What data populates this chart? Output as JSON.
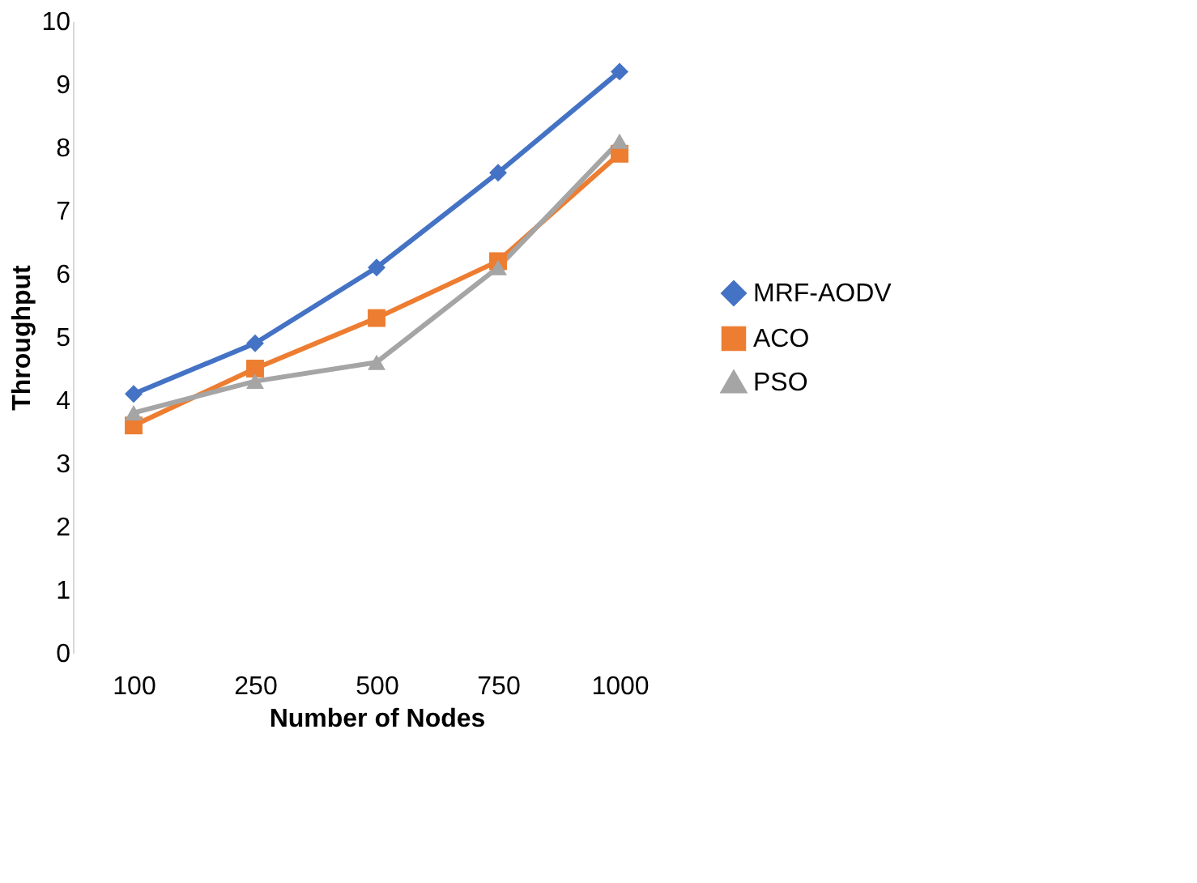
{
  "chart_data": {
    "type": "line",
    "xlabel": "Number of Nodes",
    "ylabel": "Throughput",
    "categories": [
      "100",
      "250",
      "500",
      "750",
      "1000"
    ],
    "ylim": [
      0,
      10
    ],
    "yticks": [
      0,
      1,
      2,
      3,
      4,
      5,
      6,
      7,
      8,
      9,
      10
    ],
    "grid": false,
    "legend": "right",
    "line_style": "solid",
    "series": [
      {
        "name": "MRF-AODV",
        "color": "#4472c4",
        "marker": "diamond",
        "values": [
          4.1,
          4.9,
          6.1,
          7.6,
          9.2
        ]
      },
      {
        "name": "ACO",
        "color": "#ed7d31",
        "marker": "square",
        "values": [
          3.6,
          4.5,
          5.3,
          6.2,
          7.9
        ]
      },
      {
        "name": "PSO",
        "color": "#a5a5a5",
        "marker": "triangle",
        "values": [
          3.8,
          4.3,
          4.6,
          6.1,
          8.1
        ]
      }
    ]
  }
}
